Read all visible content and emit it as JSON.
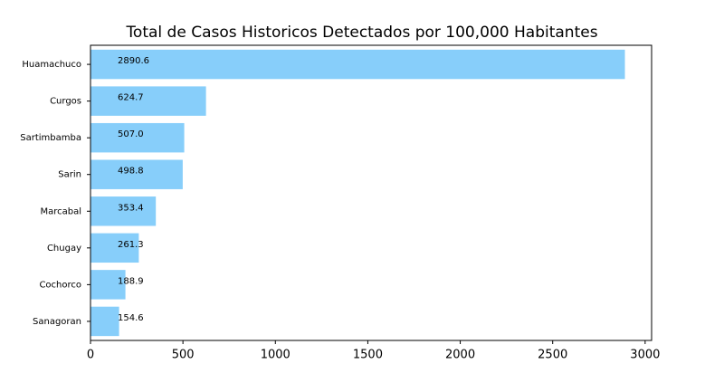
{
  "chart_data": {
    "type": "barh",
    "title": "Total de Casos Historicos Detectados por 100,000 Habitantes",
    "categories": [
      "Huamachuco",
      "Curgos",
      "Sartimbamba",
      "Sarin",
      "Marcabal",
      "Chugay",
      "Cochorco",
      "Sanagoran"
    ],
    "values": [
      2890.6,
      624.7,
      507.0,
      498.8,
      353.4,
      261.3,
      188.9,
      154.6
    ],
    "value_labels": [
      "2890.6",
      "624.7",
      "507.0",
      "498.8",
      "353.4",
      "261.3",
      "188.9",
      "154.6"
    ],
    "color": "#87cefa",
    "xlim": [
      0,
      3035
    ],
    "xticks": [
      0,
      500,
      1000,
      1500,
      2000,
      2500,
      3000
    ]
  }
}
